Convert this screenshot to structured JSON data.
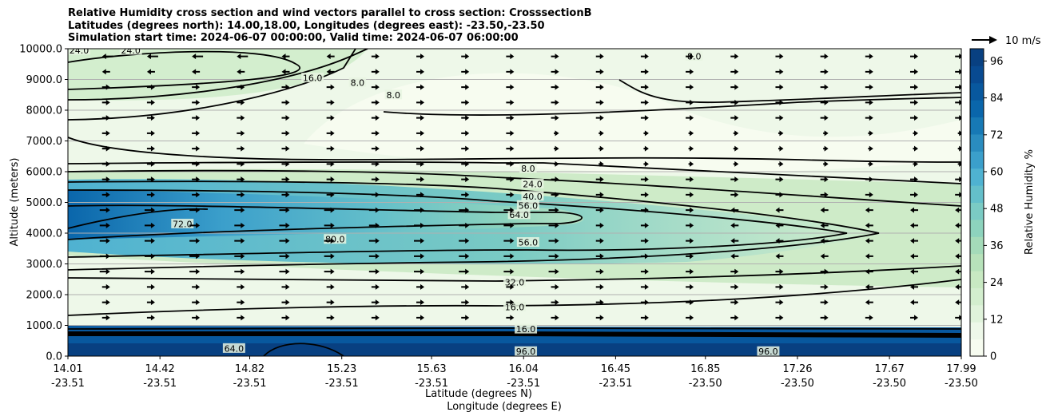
{
  "chart_data": {
    "type": "heatmap",
    "title_lines": [
      "Relative Humidity cross section and wind vectors parallel to cross section: CrosssectionB",
      "Latitudes (degrees north): 14.00,18.00, Longitudes (degrees east): -23.50,-23.50",
      "Simulation start time: 2024-06-07 00:00:00, Valid time: 2024-06-07 06:00:00"
    ],
    "ylabel": "Altitude (meters)",
    "xlabel_lines": [
      "Latitude (degrees N)",
      "Longitude (degrees E)"
    ],
    "ylim": [
      0,
      10000
    ],
    "y_ticks": [
      "0.0",
      "1000.0",
      "2000.0",
      "3000.0",
      "4000.0",
      "5000.0",
      "6000.0",
      "7000.0",
      "8000.0",
      "9000.0",
      "10000.0"
    ],
    "x_ticks": [
      {
        "lat": "14.01",
        "lon": "-23.51"
      },
      {
        "lat": "14.42",
        "lon": "-23.51"
      },
      {
        "lat": "14.82",
        "lon": "-23.51"
      },
      {
        "lat": "15.23",
        "lon": "-23.51"
      },
      {
        "lat": "15.63",
        "lon": "-23.51"
      },
      {
        "lat": "16.04",
        "lon": "-23.51"
      },
      {
        "lat": "16.45",
        "lon": "-23.51"
      },
      {
        "lat": "16.85",
        "lon": "-23.50"
      },
      {
        "lat": "17.26",
        "lon": "-23.50"
      },
      {
        "lat": "17.67",
        "lon": "-23.50"
      },
      {
        "lat": "17.99",
        "lon": "-23.50"
      }
    ],
    "grid_y": true,
    "colorbar": {
      "label": "Relative Humidity %",
      "min": 0,
      "max": 100,
      "tick_values": [
        0,
        12,
        24,
        36,
        48,
        60,
        72,
        84,
        96
      ],
      "colors": [
        "#f7fcf0",
        "#eef8e9",
        "#e0f3db",
        "#d3eece",
        "#c8e9c2",
        "#b7e2ba",
        "#a4dbb9",
        "#8dd3bd",
        "#7bcbc4",
        "#64bfca",
        "#4fb2d1",
        "#3b9fcb",
        "#2a8cbf",
        "#1779b5",
        "#0a66ab",
        "#08589e",
        "#084a91",
        "#084081"
      ]
    },
    "wind_key": {
      "label": "10 m/s"
    },
    "contour_labels": [
      {
        "text": "24.0",
        "x": 14.06,
        "y": 9950
      },
      {
        "text": "24.0",
        "x": 14.29,
        "y": 9950
      },
      {
        "text": "16.0",
        "x": 15.1,
        "y": 9050
      },
      {
        "text": "8.0",
        "x": 15.3,
        "y": 8900
      },
      {
        "text": "8.0",
        "x": 15.46,
        "y": 8500
      },
      {
        "text": "8.0",
        "x": 16.8,
        "y": 9750
      },
      {
        "text": "8.0",
        "x": 16.06,
        "y": 6100
      },
      {
        "text": "24.0",
        "x": 16.08,
        "y": 5600
      },
      {
        "text": "40.0",
        "x": 16.08,
        "y": 5200
      },
      {
        "text": "56.0",
        "x": 16.06,
        "y": 4900
      },
      {
        "text": "64.0",
        "x": 16.02,
        "y": 4600
      },
      {
        "text": "56.0",
        "x": 16.06,
        "y": 3700
      },
      {
        "text": "32.0",
        "x": 16.0,
        "y": 2400
      },
      {
        "text": "16.0",
        "x": 16.0,
        "y": 1600
      },
      {
        "text": "16.0",
        "x": 16.05,
        "y": 880
      },
      {
        "text": "96.0",
        "x": 16.05,
        "y": 150
      },
      {
        "text": "80.0",
        "x": 15.2,
        "y": 3800
      },
      {
        "text": "72.0",
        "x": 14.52,
        "y": 4300
      },
      {
        "text": "64.0",
        "x": 14.75,
        "y": 250
      },
      {
        "text": "96.0",
        "x": 17.13,
        "y": 150
      }
    ]
  }
}
